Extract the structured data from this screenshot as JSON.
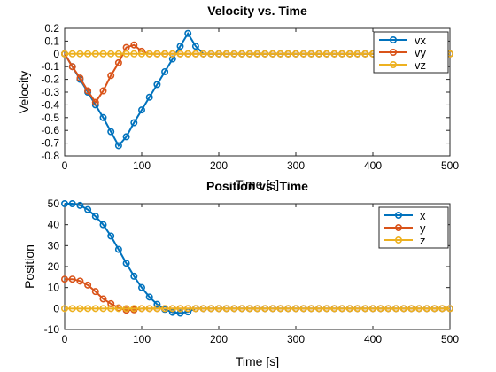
{
  "chart_data": [
    {
      "type": "line",
      "title": "Velocity vs. Time",
      "xlabel": "Time [s]",
      "ylabel": "Velocity",
      "xlim": [
        0,
        500
      ],
      "ylim": [
        -0.8,
        0.2
      ],
      "xticks": [
        0,
        100,
        200,
        300,
        400,
        500
      ],
      "yticks": [
        -0.8,
        -0.7,
        -0.6,
        -0.5,
        -0.4,
        -0.3,
        -0.2,
        -0.1,
        0,
        0.1,
        0.2
      ],
      "grid": false,
      "legend_position": "top-right",
      "x": [
        0,
        10,
        20,
        30,
        40,
        50,
        60,
        70,
        80,
        90,
        100,
        110,
        120,
        130,
        140,
        150,
        160,
        170,
        180,
        190,
        200,
        210,
        220,
        230,
        240,
        250,
        260,
        270,
        280,
        290,
        300,
        310,
        320,
        330,
        340,
        350,
        360,
        370,
        380,
        390,
        400,
        410,
        420,
        430,
        440,
        450,
        460,
        470,
        480,
        490,
        500
      ],
      "series": [
        {
          "name": "vx",
          "color": "#0072BD",
          "values": [
            0,
            -0.1,
            -0.2,
            -0.3,
            -0.4,
            -0.5,
            -0.61,
            -0.72,
            -0.65,
            -0.54,
            -0.44,
            -0.34,
            -0.24,
            -0.14,
            -0.04,
            0.06,
            0.16,
            0.06,
            0,
            0,
            0,
            0,
            0,
            0,
            0,
            0,
            0,
            0,
            0,
            0,
            0,
            0,
            0,
            0,
            0,
            0,
            0,
            0,
            0,
            0,
            0,
            0,
            0,
            0,
            0,
            0,
            0,
            0,
            0,
            0,
            0
          ]
        },
        {
          "name": "vy",
          "color": "#D95319",
          "values": [
            0,
            -0.1,
            -0.19,
            -0.29,
            -0.38,
            -0.29,
            -0.17,
            -0.07,
            0.05,
            0.07,
            0.02,
            0,
            0,
            0,
            0,
            0,
            0,
            0,
            0,
            0,
            0,
            0,
            0,
            0,
            0,
            0,
            0,
            0,
            0,
            0,
            0,
            0,
            0,
            0,
            0,
            0,
            0,
            0,
            0,
            0,
            0,
            0,
            0,
            0,
            0,
            0,
            0,
            0,
            0,
            0,
            0
          ]
        },
        {
          "name": "vz",
          "color": "#EDB120",
          "values": [
            0,
            0,
            0,
            0,
            0,
            0,
            0,
            0,
            0,
            0,
            0,
            0,
            0,
            0,
            0,
            0,
            0,
            0,
            0,
            0,
            0,
            0,
            0,
            0,
            0,
            0,
            0,
            0,
            0,
            0,
            0,
            0,
            0,
            0,
            0,
            0,
            0,
            0,
            0,
            0,
            0,
            0,
            0,
            0,
            0,
            0,
            0,
            0,
            0,
            0,
            0
          ]
        }
      ]
    },
    {
      "type": "line",
      "title": "Position vs. Time",
      "xlabel": "Time [s]",
      "ylabel": "Position",
      "xlim": [
        0,
        500
      ],
      "ylim": [
        -10,
        50
      ],
      "xticks": [
        0,
        100,
        200,
        300,
        400,
        500
      ],
      "yticks": [
        -10,
        0,
        10,
        20,
        30,
        40,
        50
      ],
      "grid": false,
      "legend_position": "top-right",
      "x": [
        0,
        10,
        20,
        30,
        40,
        50,
        60,
        70,
        80,
        90,
        100,
        110,
        120,
        130,
        140,
        150,
        160,
        170,
        180,
        190,
        200,
        210,
        220,
        230,
        240,
        250,
        260,
        270,
        280,
        290,
        300,
        310,
        320,
        330,
        340,
        350,
        360,
        370,
        380,
        390,
        400,
        410,
        420,
        430,
        440,
        450,
        460,
        470,
        480,
        490,
        500
      ],
      "series": [
        {
          "name": "x",
          "color": "#0072BD",
          "values": [
            50,
            50,
            49.2,
            47.2,
            44,
            40,
            34.6,
            28.2,
            21.6,
            15.4,
            10,
            5.5,
            2,
            -0.4,
            -1.8,
            -2.2,
            -1.6,
            0,
            0,
            0,
            0,
            0,
            0,
            0,
            0,
            0,
            0,
            0,
            0,
            0,
            0,
            0,
            0,
            0,
            0,
            0,
            0,
            0,
            0,
            0,
            0,
            0,
            0,
            0,
            0,
            0,
            0,
            0,
            0,
            0,
            0
          ]
        },
        {
          "name": "y",
          "color": "#D95319",
          "values": [
            14,
            14,
            13.1,
            11.2,
            8.1,
            4.6,
            2.3,
            0.3,
            -0.8,
            -0.6,
            0,
            0,
            0,
            0,
            0,
            0,
            0,
            0,
            0,
            0,
            0,
            0,
            0,
            0,
            0,
            0,
            0,
            0,
            0,
            0,
            0,
            0,
            0,
            0,
            0,
            0,
            0,
            0,
            0,
            0,
            0,
            0,
            0,
            0,
            0,
            0,
            0,
            0,
            0,
            0,
            0
          ]
        },
        {
          "name": "z",
          "color": "#EDB120",
          "values": [
            0,
            0,
            0,
            0,
            0,
            0,
            0,
            0,
            0,
            0,
            0,
            0,
            0,
            0,
            0,
            0,
            0,
            0,
            0,
            0,
            0,
            0,
            0,
            0,
            0,
            0,
            0,
            0,
            0,
            0,
            0,
            0,
            0,
            0,
            0,
            0,
            0,
            0,
            0,
            0,
            0,
            0,
            0,
            0,
            0,
            0,
            0,
            0,
            0,
            0,
            0
          ]
        }
      ]
    }
  ]
}
